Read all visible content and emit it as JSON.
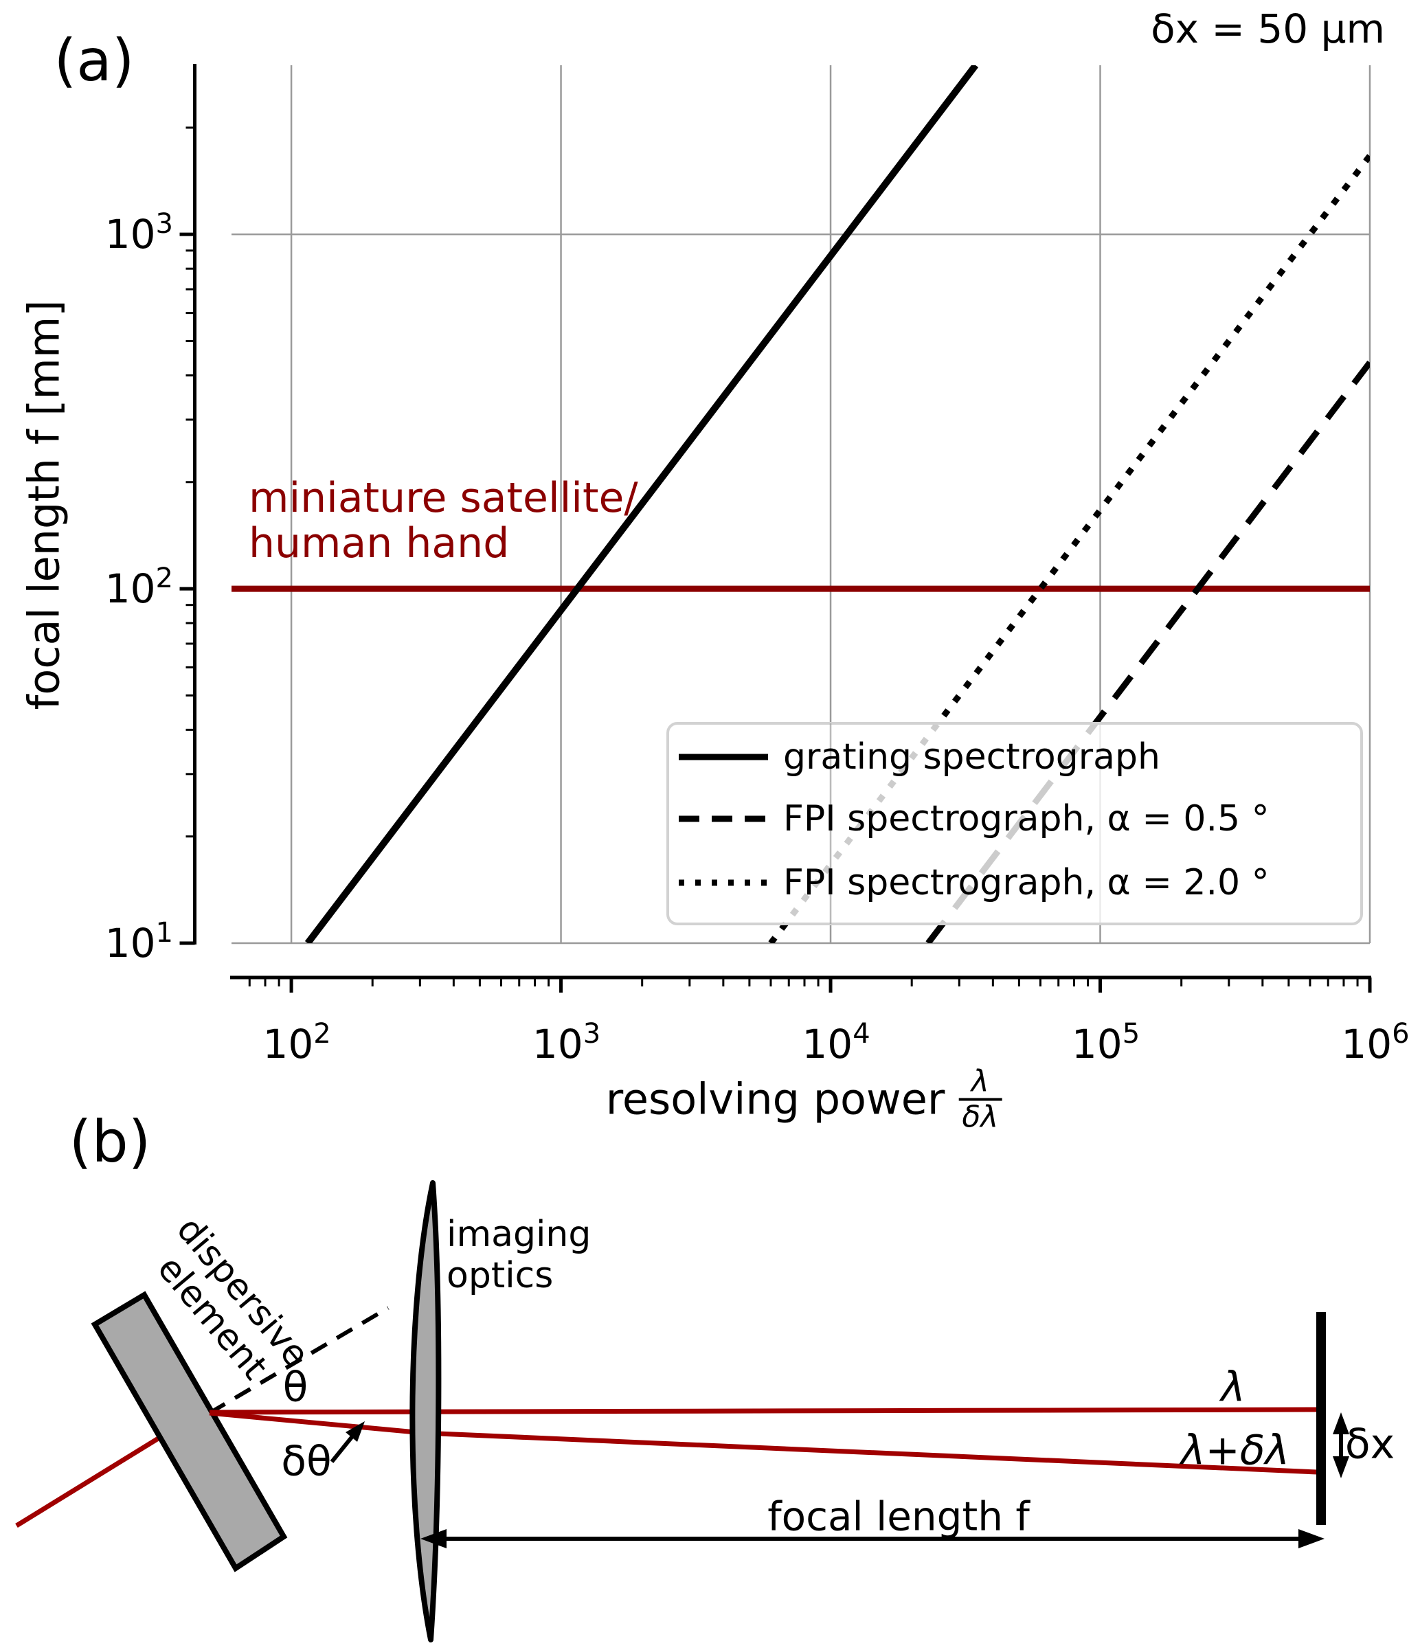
{
  "figure": {
    "panel_a_tag": "(a)",
    "panel_b_tag": "(b)"
  },
  "chart_data": {
    "type": "line",
    "title": "δx = 50 μm",
    "xlabel_main": "resolving power",
    "xlabel_frac_top": "λ",
    "xlabel_frac_bottom": "δλ",
    "ylabel": "focal length f [mm]",
    "xscale": "log",
    "yscale": "log",
    "xlim": [
      60,
      1000000
    ],
    "ylim": [
      10,
      3000
    ],
    "x_ticks": [
      100,
      1000,
      10000,
      100000,
      1000000
    ],
    "y_ticks": [
      10,
      100,
      1000
    ],
    "grid": true,
    "legend_position": "lower right",
    "series": [
      {
        "name": "grating spectrograph",
        "style": "solid",
        "color": "#000000",
        "points_R_f": [
          [
            115,
            10
          ],
          [
            34500,
            3000
          ]
        ]
      },
      {
        "name": "FPI spectrograph, α = 0.5 °",
        "style": "dashed",
        "color": "#000000",
        "points_R_f": [
          [
            23000,
            10
          ],
          [
            1000000,
            435
          ]
        ]
      },
      {
        "name": "FPI spectrograph, α = 2.0 °",
        "style": "dotted",
        "color": "#000000",
        "points_R_f": [
          [
            6000,
            10
          ],
          [
            1000000,
            1667
          ]
        ]
      }
    ],
    "annotation_line": {
      "label": "miniature satellite/\nhuman hand",
      "f_mm": 100,
      "color": "#8b0000"
    }
  },
  "diagram": {
    "dispersive_element_label": "dispersive\nelement",
    "imaging_optics_label": "imaging\noptics",
    "theta_label": "θ",
    "delta_theta_label": "δθ",
    "lambda_label": "λ",
    "lambda_plus_label": "λ+δλ",
    "delta_x_label": "δx",
    "focal_length_label": "focal length f"
  },
  "colors": {
    "ray_red": "#a00000",
    "dark_red": "#8b0000",
    "grid_gray": "#9a9a9a",
    "element_gray": "#a9a9a9",
    "legend_border": "#d2d2d2",
    "ink": "#000000"
  }
}
